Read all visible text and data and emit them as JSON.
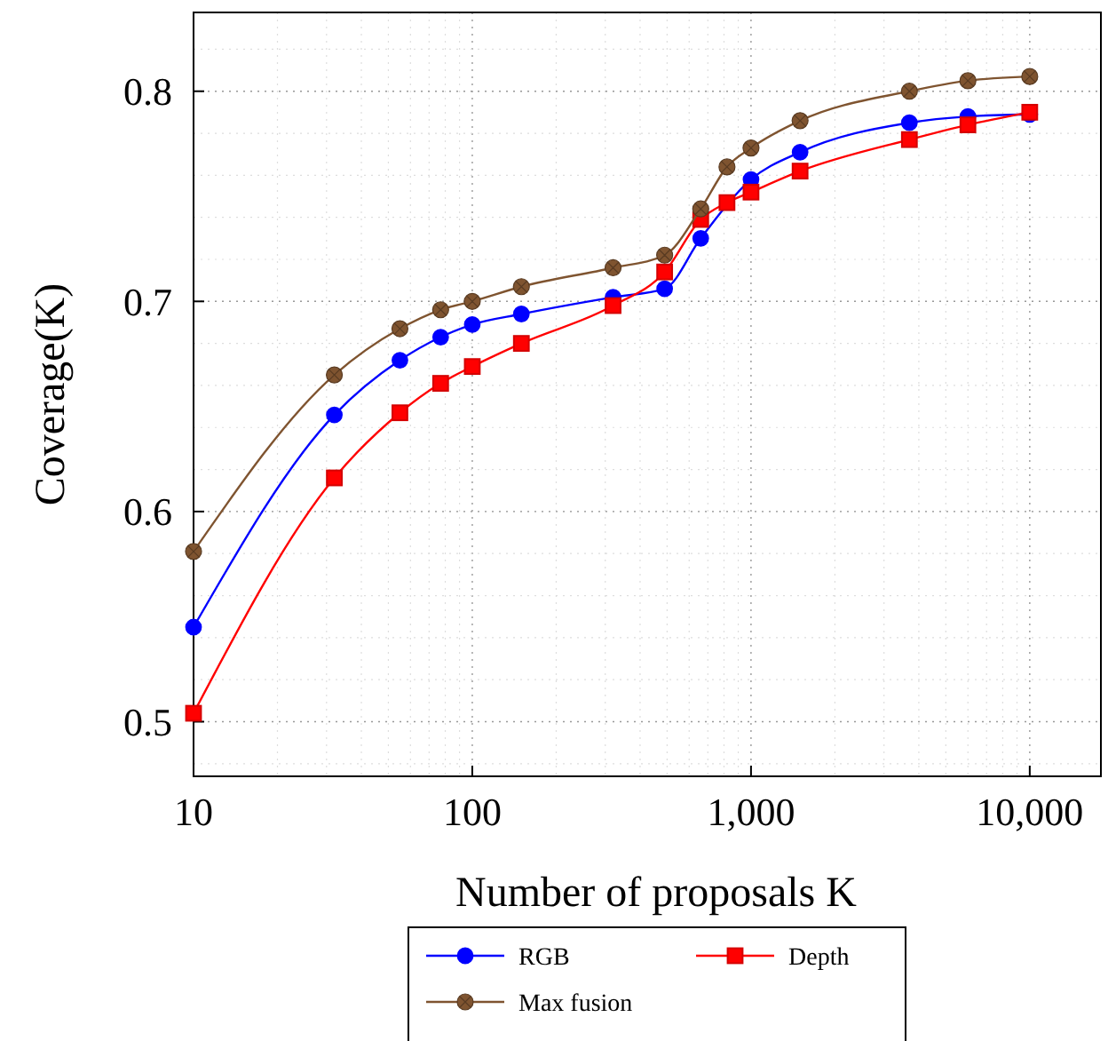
{
  "chart_data": {
    "type": "line",
    "xlabel": "Number of proposals K",
    "ylabel": "Coverage(K)",
    "log": "x",
    "xlim": [
      10,
      18000
    ],
    "xticks": [
      10,
      100,
      {
        "value": 1000,
        "label": "1,000"
      },
      {
        "value": 10000,
        "label": "10,000"
      }
    ],
    "ylim": [
      0.474,
      0.8375
    ],
    "yticks": [
      0.5,
      0.6,
      0.7,
      0.8
    ],
    "grid": true,
    "legend": "bottom",
    "series": [
      {
        "name": "RGB",
        "color": "#0000ff",
        "marker": "circle",
        "x": [
          10,
          32,
          55,
          77,
          100,
          150,
          320,
          490,
          660,
          820,
          1000,
          1500,
          3700,
          6000,
          10000
        ],
        "values": [
          0.545,
          0.646,
          0.672,
          0.683,
          0.689,
          0.694,
          0.702,
          0.706,
          0.73,
          null,
          0.758,
          0.771,
          0.785,
          0.788,
          0.789
        ]
      },
      {
        "name": "Depth",
        "color": "#ff0000",
        "marker": "square",
        "x": [
          10,
          32,
          55,
          77,
          100,
          150,
          320,
          490,
          660,
          820,
          1000,
          1500,
          3700,
          6000,
          10000
        ],
        "values": [
          0.504,
          0.616,
          0.647,
          0.661,
          0.669,
          0.68,
          0.698,
          0.714,
          0.739,
          0.747,
          0.752,
          0.762,
          0.777,
          0.784,
          0.79
        ]
      },
      {
        "name": "Max fusion",
        "color": "#7f5430",
        "marker": "cross",
        "x": [
          10,
          32,
          55,
          77,
          100,
          150,
          320,
          490,
          660,
          820,
          1000,
          1500,
          3700,
          6000,
          10000
        ],
        "values": [
          0.581,
          0.665,
          0.687,
          0.696,
          0.7,
          0.707,
          0.716,
          0.722,
          0.744,
          0.764,
          0.773,
          0.786,
          0.8,
          0.805,
          0.807
        ]
      }
    ]
  }
}
